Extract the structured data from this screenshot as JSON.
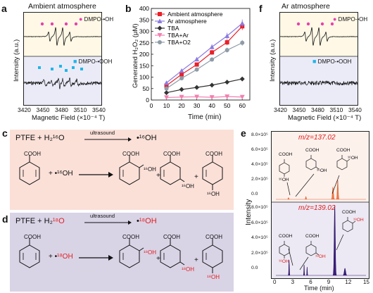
{
  "panels": {
    "a": {
      "letter": "a",
      "title": "Ambient atmosphere",
      "legend_top": "DMPO-•OH",
      "legend_bottom": "DMPO-•OOH",
      "ylabel": "Intensity (a.u.)",
      "xlabel": "Magnetic  Field (×10⁻⁴ T)",
      "xticks": [
        "3420",
        "3450",
        "3480",
        "3510",
        "3540"
      ]
    },
    "b": {
      "letter": "b",
      "xlabel": "Time (min)",
      "ylabel": "Generated H₂O₂ (μM)"
    },
    "f": {
      "letter": "f",
      "title": "Ar atmosphere",
      "legend_top": "DMPO-•OH",
      "legend_bottom": "DMPO-•OOH",
      "ylabel": "Intensity (a.u.)",
      "xlabel": "Magnetic  Field (×10⁻⁴ T)",
      "xticks": [
        "3420",
        "3450",
        "3480",
        "3510",
        "3540"
      ]
    },
    "c": {
      "letter": "c",
      "eq_left": "PTFE + H₂¹⁶O",
      "eq_arrow": "ultrasound",
      "eq_right": "•¹⁶OH",
      "reactant_group": "COOH",
      "radical": "+ •¹⁶OH",
      "plus1": "+",
      "plus2": "+",
      "product_group": "COOH",
      "p1_sub": "¹⁶OH",
      "p2_sub": "¹⁶OH",
      "p3_sub": "¹⁶OH"
    },
    "d": {
      "letter": "d",
      "eq_left_prefix": "PTFE + H₂",
      "eq_left_iso": "¹⁸O",
      "eq_arrow": "ultrasound",
      "eq_right_dot": "•",
      "eq_right_iso": "¹⁸OH",
      "reactant_group": "COOH",
      "radical_prefix": "+ •",
      "radical_iso": "¹⁸OH",
      "plus1": "+",
      "plus2": "+",
      "product_group": "COOH",
      "p1_sub": "¹⁸OH",
      "p2_sub": "¹⁸OH",
      "p3_sub": "¹⁸OH"
    },
    "e": {
      "letter": "e",
      "mz_top": "m/z=137.02",
      "mz_bottom": "m/z=139.02",
      "ylabel": "Intensity",
      "xlabel": "Time (min)",
      "yticks_top": [
        "8.0×10⁵",
        "6.0×10⁵",
        "4.0×10⁵",
        "2.0×10⁵",
        "0.0"
      ],
      "yticks_bottom": [
        "8.0×10⁵",
        "6.0×10⁵",
        "4.0×10⁵",
        "2.0×10⁵",
        "0.0"
      ],
      "xticks": [
        "0",
        "3",
        "6",
        "9",
        "12",
        "15"
      ],
      "group": "COOH",
      "sub16": "¹⁶OH",
      "sub18": "¹⁸OH"
    }
  },
  "colors": {
    "ambient": "#e8202a",
    "ar": "#8c7be0",
    "tba": "#333333",
    "tba_ar": "#f27fb0",
    "tba_o2": "#8e9ca8",
    "pink": "#e83fae",
    "cyan": "#1fb6e8",
    "orange": "#f07a4a",
    "purple": "#3b1f7a",
    "panel_c_bg": "#fbe0d8",
    "panel_d_bg": "#d9d3e6",
    "iso_red": "#e02020"
  },
  "chart_data": {
    "type": "line",
    "title": "",
    "xlabel": "Time (min)",
    "ylabel": "Generated H₂O₂ (μM)",
    "xlim": [
      0,
      65
    ],
    "ylim": [
      0,
      400
    ],
    "xticks": [
      0,
      10,
      20,
      30,
      40,
      50,
      60
    ],
    "yticks": [
      0,
      50,
      100,
      150,
      200,
      250,
      300,
      350,
      400
    ],
    "x": [
      10,
      20,
      30,
      40,
      50,
      60
    ],
    "series": [
      {
        "name": "Ambient atmosphere",
        "marker": "square",
        "values": [
          63,
          112,
          155,
          208,
          252,
          322
        ]
      },
      {
        "name": "Ar atmosphere",
        "marker": "triangle-up",
        "values": [
          75,
          128,
          178,
          232,
          280,
          335
        ]
      },
      {
        "name": "TBA",
        "marker": "diamond",
        "values": [
          32,
          46,
          55,
          65,
          78,
          92
        ]
      },
      {
        "name": "TBA+Ar",
        "marker": "triangle-down",
        "values": [
          11,
          13,
          14,
          12,
          15,
          13
        ]
      },
      {
        "name": "TBA+O2",
        "marker": "circle",
        "values": [
          50,
          95,
          133,
          177,
          218,
          250
        ]
      }
    ],
    "legend": "top-left"
  }
}
